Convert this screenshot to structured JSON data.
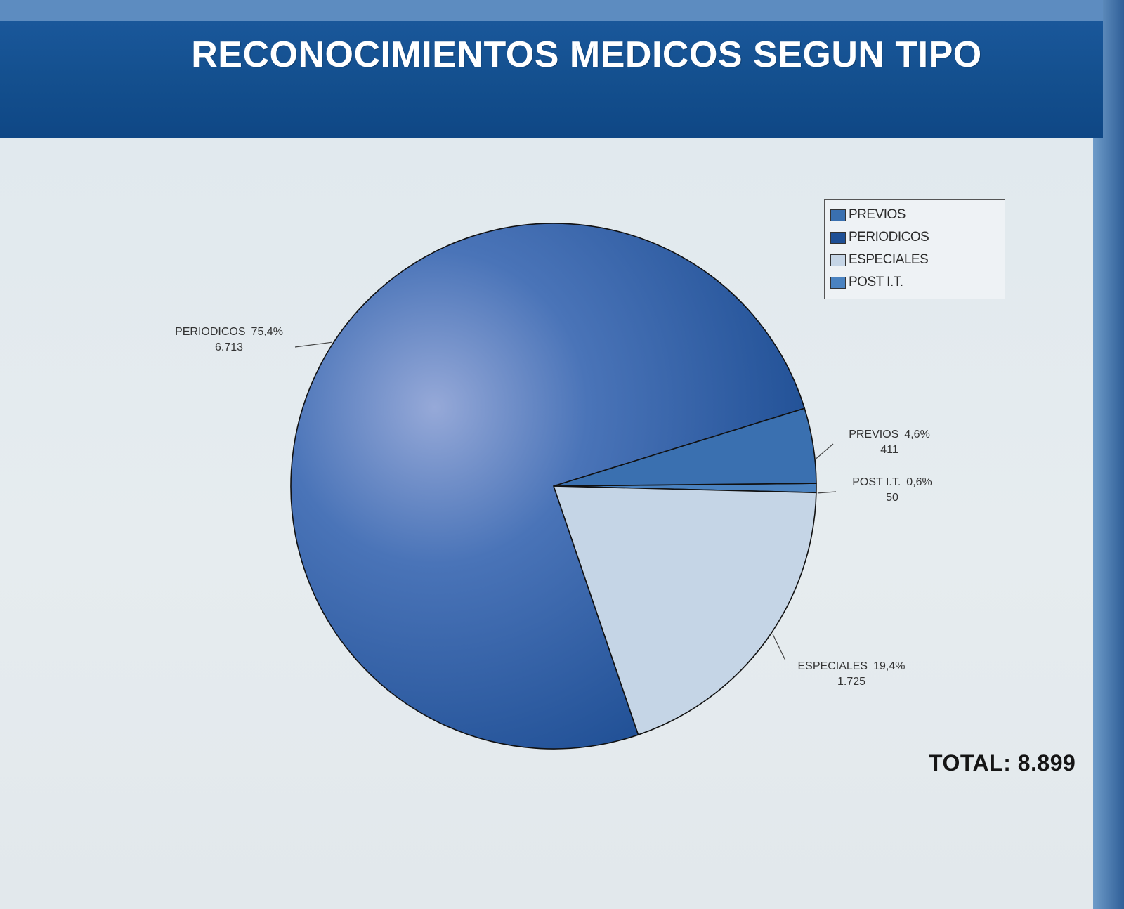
{
  "header": {
    "title": "RECONOCIMIENTOS MEDICOS SEGUN TIPO"
  },
  "total": "TOTAL: 8.899",
  "chart_data": {
    "type": "pie",
    "title": "RECONOCIMIENTOS MEDICOS SEGUN TIPO",
    "legend_position": "top-right",
    "legend": [
      "PREVIOS",
      "PERIODICOS",
      "ESPECIALES",
      "POST I.T."
    ],
    "slices": [
      {
        "label": "PREVIOS",
        "value": 411,
        "value_text": "411",
        "percent_text": "4,6%",
        "color": "#3a70b0"
      },
      {
        "label": "PERIODICOS",
        "value": 6713,
        "value_text": "6.713",
        "percent_text": "75,4%",
        "color": "#1e4f95"
      },
      {
        "label": "ESPECIALES",
        "value": 1725,
        "value_text": "1.725",
        "percent_text": "19,4%",
        "color": "#c5d5e6"
      },
      {
        "label": "POST I.T.",
        "value": 50,
        "value_text": "50",
        "percent_text": "0,6%",
        "color": "#4a82c0"
      }
    ]
  }
}
